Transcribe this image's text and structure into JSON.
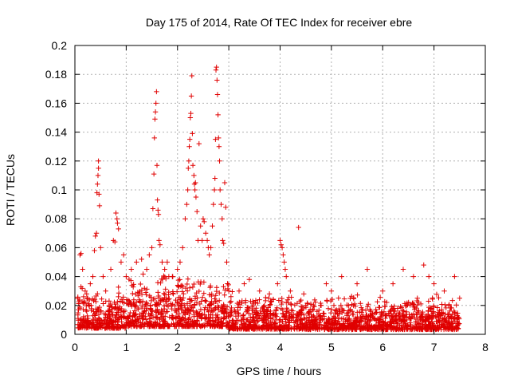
{
  "chart_data": {
    "type": "scatter",
    "title": "Day 175 of 2014, Rate Of TEC Index for receiver ebre",
    "xlabel": "GPS time / hours",
    "ylabel": "ROTI / TECUs",
    "xlim": [
      0,
      8
    ],
    "ylim": [
      0,
      0.2
    ],
    "xticks": [
      0,
      1,
      2,
      3,
      4,
      5,
      6,
      7,
      8
    ],
    "xtick_labels": [
      "0",
      "1",
      "2",
      "3",
      "4",
      "5",
      "6",
      "7",
      "8"
    ],
    "yticks": [
      0,
      0.02,
      0.04,
      0.06,
      0.08,
      0.1,
      0.12,
      0.14,
      0.16,
      0.18,
      0.2
    ],
    "ytick_labels": [
      "0",
      "0.02",
      "0.04",
      "0.06",
      "0.08",
      "0.1",
      "0.12",
      "0.14",
      "0.16",
      "0.18",
      "0.2"
    ],
    "grid": true,
    "marker": "+",
    "color": "#e00000",
    "series": [
      {
        "name": "ROTI",
        "points": [
          [
            0.1,
            0.055
          ],
          [
            0.12,
            0.056
          ],
          [
            0.15,
            0.045
          ],
          [
            0.2,
            0.03
          ],
          [
            0.25,
            0.025
          ],
          [
            0.3,
            0.035
          ],
          [
            0.35,
            0.04
          ],
          [
            0.38,
            0.058
          ],
          [
            0.4,
            0.068
          ],
          [
            0.42,
            0.07
          ],
          [
            0.43,
            0.098
          ],
          [
            0.44,
            0.104
          ],
          [
            0.45,
            0.11
          ],
          [
            0.46,
            0.115
          ],
          [
            0.46,
            0.12
          ],
          [
            0.47,
            0.097
          ],
          [
            0.48,
            0.089
          ],
          [
            0.5,
            0.06
          ],
          [
            0.55,
            0.04
          ],
          [
            0.6,
            0.03
          ],
          [
            0.7,
            0.045
          ],
          [
            0.75,
            0.065
          ],
          [
            0.78,
            0.064
          ],
          [
            0.8,
            0.084
          ],
          [
            0.82,
            0.08
          ],
          [
            0.83,
            0.077
          ],
          [
            0.85,
            0.073
          ],
          [
            0.9,
            0.05
          ],
          [
            0.95,
            0.055
          ],
          [
            1.0,
            0.04
          ],
          [
            1.1,
            0.045
          ],
          [
            1.2,
            0.05
          ],
          [
            1.3,
            0.052
          ],
          [
            1.4,
            0.045
          ],
          [
            1.45,
            0.055
          ],
          [
            1.5,
            0.06
          ],
          [
            1.52,
            0.087
          ],
          [
            1.54,
            0.111
          ],
          [
            1.55,
            0.136
          ],
          [
            1.56,
            0.149
          ],
          [
            1.57,
            0.154
          ],
          [
            1.58,
            0.16
          ],
          [
            1.59,
            0.168
          ],
          [
            1.6,
            0.117
          ],
          [
            1.61,
            0.093
          ],
          [
            1.62,
            0.086
          ],
          [
            1.63,
            0.083
          ],
          [
            1.64,
            0.065
          ],
          [
            1.66,
            0.062
          ],
          [
            1.7,
            0.05
          ],
          [
            1.75,
            0.045
          ],
          [
            1.8,
            0.05
          ],
          [
            1.9,
            0.04
          ],
          [
            2.0,
            0.045
          ],
          [
            2.05,
            0.05
          ],
          [
            2.1,
            0.06
          ],
          [
            2.15,
            0.08
          ],
          [
            2.18,
            0.09
          ],
          [
            2.2,
            0.1
          ],
          [
            2.21,
            0.115
          ],
          [
            2.22,
            0.12
          ],
          [
            2.23,
            0.13
          ],
          [
            2.24,
            0.135
          ],
          [
            2.25,
            0.15
          ],
          [
            2.26,
            0.153
          ],
          [
            2.27,
            0.165
          ],
          [
            2.28,
            0.179
          ],
          [
            2.29,
            0.139
          ],
          [
            2.3,
            0.117
          ],
          [
            2.32,
            0.11
          ],
          [
            2.33,
            0.104
          ],
          [
            2.34,
            0.1
          ],
          [
            2.35,
            0.105
          ],
          [
            2.36,
            0.095
          ],
          [
            2.38,
            0.085
          ],
          [
            2.4,
            0.065
          ],
          [
            2.42,
            0.132
          ],
          [
            2.45,
            0.075
          ],
          [
            2.48,
            0.065
          ],
          [
            2.5,
            0.08
          ],
          [
            2.52,
            0.078
          ],
          [
            2.55,
            0.07
          ],
          [
            2.58,
            0.065
          ],
          [
            2.6,
            0.06
          ],
          [
            2.62,
            0.055
          ],
          [
            2.65,
            0.06
          ],
          [
            2.68,
            0.075
          ],
          [
            2.7,
            0.09
          ],
          [
            2.72,
            0.1
          ],
          [
            2.73,
            0.108
          ],
          [
            2.74,
            0.135
          ],
          [
            2.75,
            0.183
          ],
          [
            2.76,
            0.185
          ],
          [
            2.77,
            0.176
          ],
          [
            2.78,
            0.166
          ],
          [
            2.79,
            0.152
          ],
          [
            2.8,
            0.136
          ],
          [
            2.81,
            0.13
          ],
          [
            2.82,
            0.12
          ],
          [
            2.83,
            0.1
          ],
          [
            2.85,
            0.09
          ],
          [
            2.87,
            0.08
          ],
          [
            2.88,
            0.065
          ],
          [
            2.9,
            0.063
          ],
          [
            2.92,
            0.105
          ],
          [
            2.94,
            0.088
          ],
          [
            2.96,
            0.05
          ],
          [
            3.0,
            0.03
          ],
          [
            3.2,
            0.03
          ],
          [
            3.3,
            0.035
          ],
          [
            3.4,
            0.038
          ],
          [
            3.6,
            0.03
          ],
          [
            3.8,
            0.02
          ],
          [
            3.95,
            0.035
          ],
          [
            4.0,
            0.065
          ],
          [
            4.02,
            0.062
          ],
          [
            4.04,
            0.06
          ],
          [
            4.06,
            0.055
          ],
          [
            4.08,
            0.05
          ],
          [
            4.1,
            0.045
          ],
          [
            4.12,
            0.04
          ],
          [
            4.2,
            0.03
          ],
          [
            4.36,
            0.074
          ],
          [
            4.5,
            0.02
          ],
          [
            4.8,
            0.02
          ],
          [
            4.9,
            0.035
          ],
          [
            5.0,
            0.03
          ],
          [
            5.2,
            0.04
          ],
          [
            5.5,
            0.035
          ],
          [
            5.7,
            0.045
          ],
          [
            6.0,
            0.03
          ],
          [
            6.2,
            0.035
          ],
          [
            6.4,
            0.045
          ],
          [
            6.6,
            0.04
          ],
          [
            6.8,
            0.048
          ],
          [
            6.9,
            0.04
          ],
          [
            7.0,
            0.035
          ],
          [
            7.2,
            0.03
          ],
          [
            7.4,
            0.04
          ],
          [
            7.5,
            0.025
          ]
        ],
        "dense_band": {
          "segments": [
            {
              "x": [
                0.05,
                1.0
              ],
              "y_range": [
                0.0,
                0.035
              ]
            },
            {
              "x": [
                1.0,
                3.0
              ],
              "y_range": [
                0.0,
                0.045
              ]
            },
            {
              "x": [
                3.0,
                4.5
              ],
              "y_range": [
                0.0,
                0.03
              ]
            },
            {
              "x": [
                4.5,
                7.5
              ],
              "y_range": [
                0.0,
                0.028
              ]
            }
          ],
          "note": "dense cloud of points between 0 and ~0.03 across the whole time range"
        }
      }
    ]
  }
}
